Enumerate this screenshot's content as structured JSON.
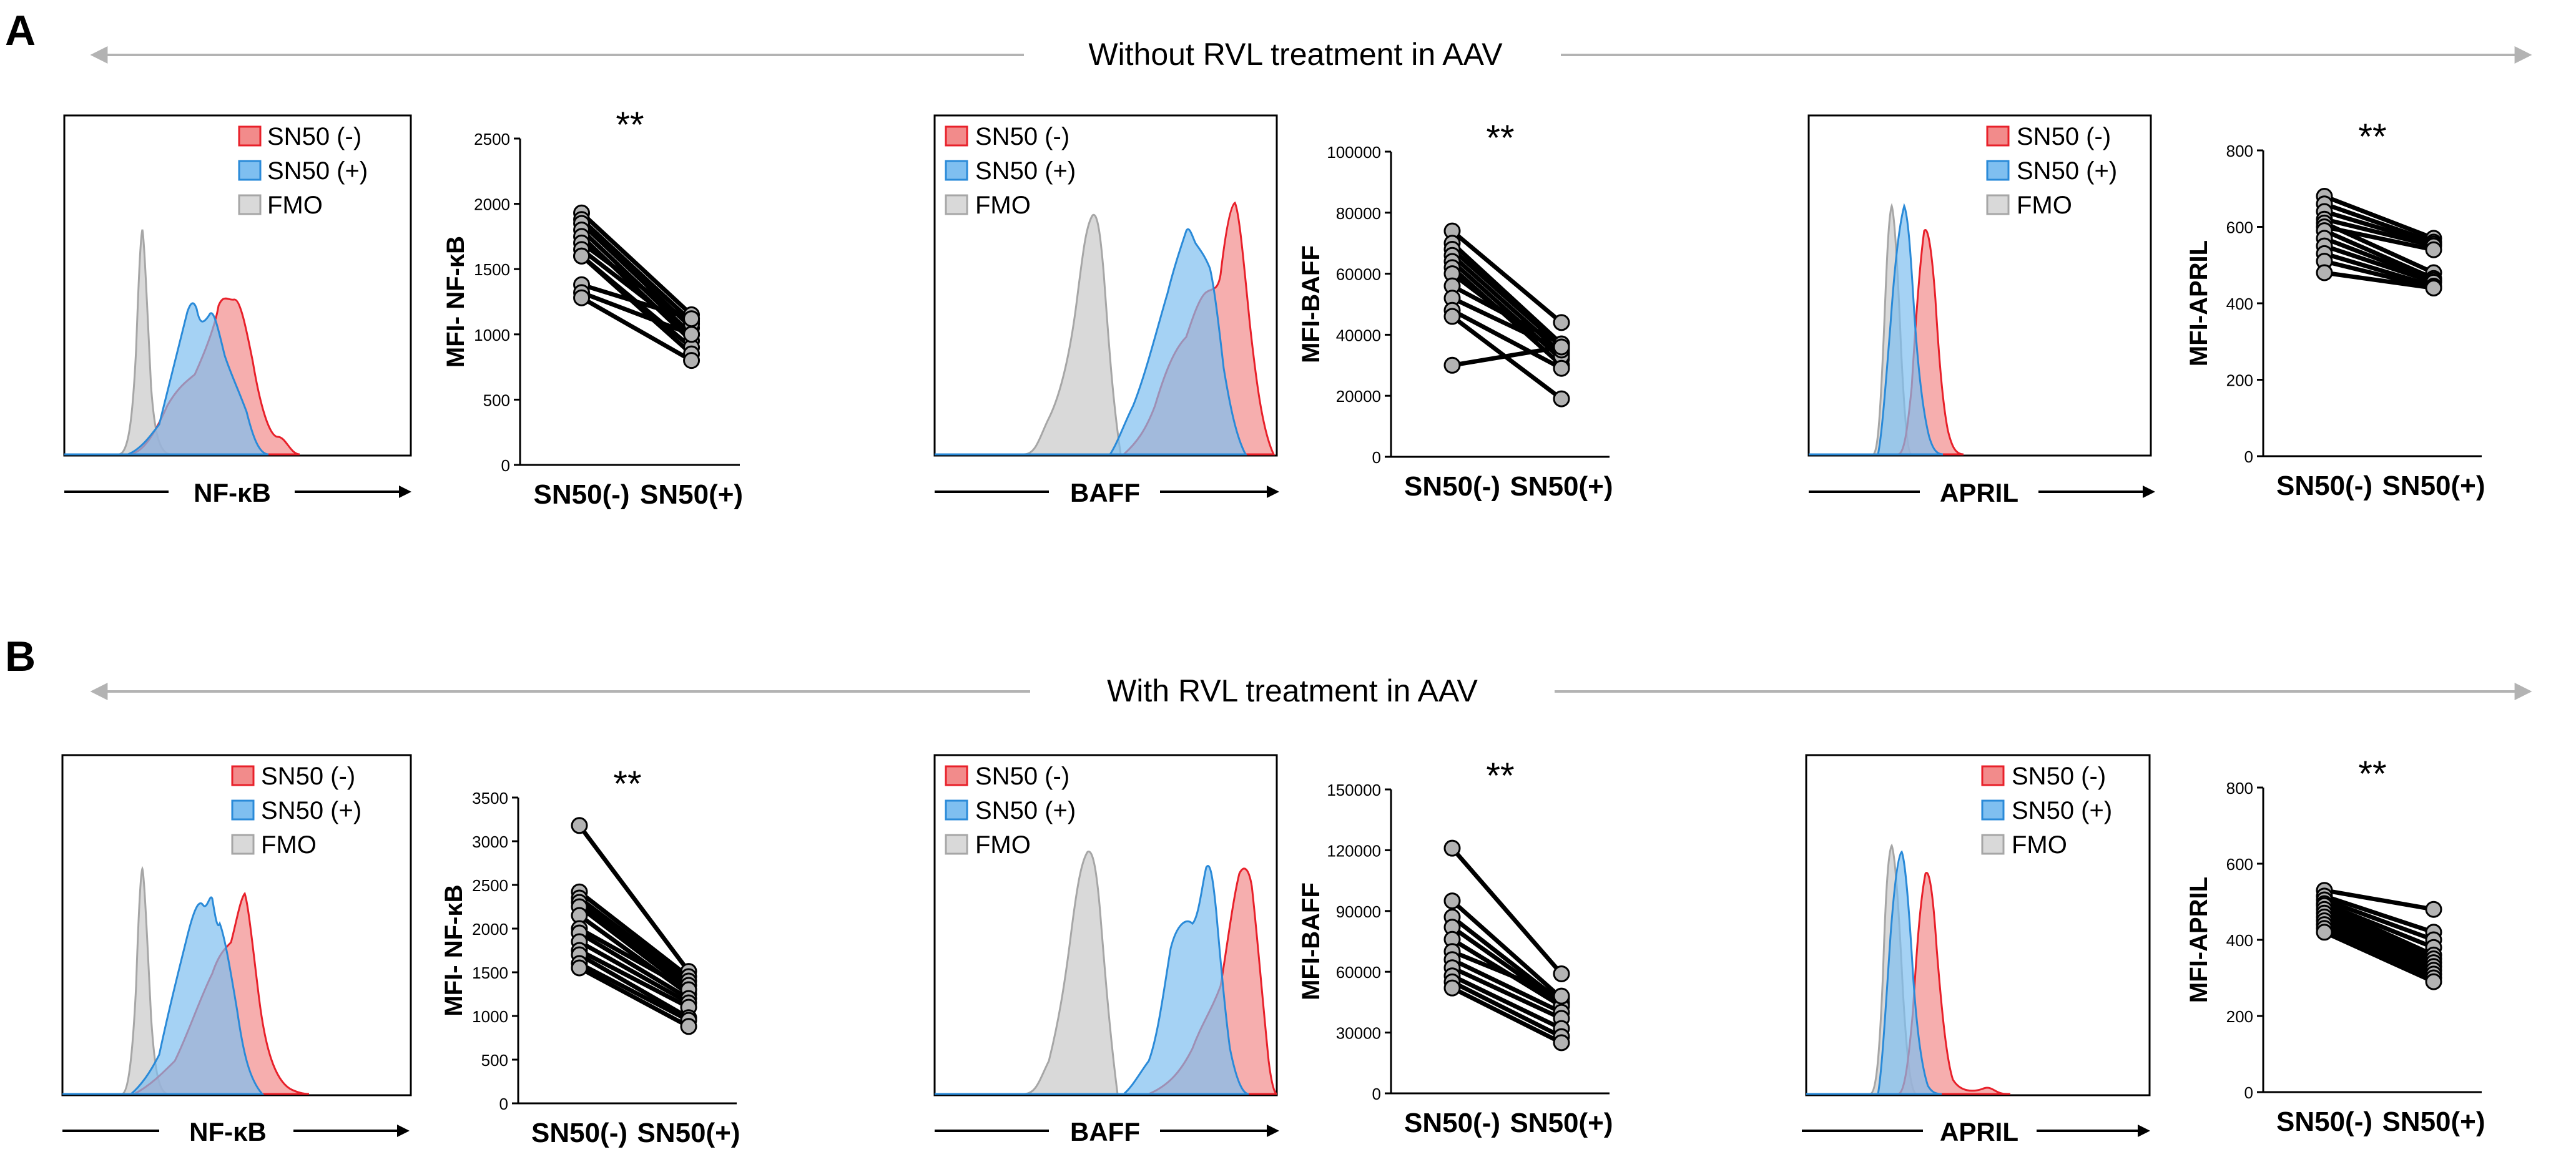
{
  "figure": {
    "panels": [
      {
        "id": "A",
        "label": "A",
        "condition": "Without RVL treatment in AAV",
        "histograms": [
          {
            "marker": "NF-κB",
            "legend": [
              "SN50 (-)",
              "SN50 (+)",
              "FMO"
            ]
          },
          {
            "marker": "BAFF",
            "legend": [
              "SN50 (-)",
              "SN50 (+)",
              "FMO"
            ]
          },
          {
            "marker": "APRIL",
            "legend": [
              "SN50 (-)",
              "SN50 (+)",
              "FMO"
            ]
          }
        ]
      },
      {
        "id": "B",
        "label": "B",
        "condition": "With RVL treatment in AAV",
        "histograms": [
          {
            "marker": "NF-κB",
            "legend": [
              "SN50 (-)",
              "SN50 (+)",
              "FMO"
            ]
          },
          {
            "marker": "BAFF",
            "legend": [
              "SN50 (-)",
              "SN50 (+)",
              "FMO"
            ]
          },
          {
            "marker": "APRIL",
            "legend": [
              "SN50 (-)",
              "SN50 (+)",
              "FMO"
            ]
          }
        ]
      }
    ],
    "colors": {
      "sn50_neg_fill": "#f28b8b",
      "sn50_neg_line": "#e8202a",
      "sn50_pos_fill": "#7fbff0",
      "sn50_pos_line": "#2a8ad8",
      "fmo_fill": "#d9d9d9",
      "fmo_line": "#a6a6a6",
      "point_fill": "#b3b3b3",
      "arrow_gray": "#b3b3b3"
    }
  },
  "chart_data": [
    {
      "type": "line",
      "panel": "A",
      "title": "**",
      "xlabel": "",
      "ylabel": "MFI- NF-κB",
      "categories": [
        "SN50(-)",
        "SN50(+)"
      ],
      "ylim": [
        0,
        2500
      ],
      "yticks": [
        0,
        500,
        1000,
        1500,
        2000,
        2500
      ],
      "series": [
        [
          1930,
          1150
        ],
        [
          1880,
          1100
        ],
        [
          1850,
          1050
        ],
        [
          1800,
          1000
        ],
        [
          1750,
          950
        ],
        [
          1700,
          1080
        ],
        [
          1650,
          1000
        ],
        [
          1600,
          900
        ],
        [
          1600,
          850
        ],
        [
          1380,
          1120
        ],
        [
          1320,
          1000
        ],
        [
          1280,
          800
        ]
      ]
    },
    {
      "type": "line",
      "panel": "A",
      "title": "**",
      "xlabel": "",
      "ylabel": "MFI-BAFF",
      "categories": [
        "SN50(-)",
        "SN50(+)"
      ],
      "ylim": [
        0,
        100000
      ],
      "yticks": [
        0,
        20000,
        40000,
        60000,
        80000,
        100000
      ],
      "series": [
        [
          74000,
          44000
        ],
        [
          70000,
          37000
        ],
        [
          68000,
          36000
        ],
        [
          66000,
          34000
        ],
        [
          64000,
          32000
        ],
        [
          62000,
          30000
        ],
        [
          60000,
          33000
        ],
        [
          56000,
          37000
        ],
        [
          52000,
          35000
        ],
        [
          48000,
          29000
        ],
        [
          46000,
          19000
        ],
        [
          30000,
          36000
        ]
      ]
    },
    {
      "type": "line",
      "panel": "A",
      "title": "**",
      "xlabel": "",
      "ylabel": "MFI-APRIL",
      "categories": [
        "SN50(-)",
        "SN50(+)"
      ],
      "ylim": [
        0,
        800
      ],
      "yticks": [
        0,
        200,
        400,
        600,
        800
      ],
      "series": [
        [
          680,
          570
        ],
        [
          660,
          560
        ],
        [
          640,
          555
        ],
        [
          620,
          550
        ],
        [
          610,
          480
        ],
        [
          600,
          540
        ],
        [
          590,
          465
        ],
        [
          570,
          460
        ],
        [
          550,
          455
        ],
        [
          530,
          445
        ],
        [
          510,
          440
        ],
        [
          480,
          440
        ]
      ]
    },
    {
      "type": "line",
      "panel": "B",
      "title": "**",
      "xlabel": "",
      "ylabel": "MFI- NF-κB",
      "categories": [
        "SN50(-)",
        "SN50(+)"
      ],
      "ylim": [
        0,
        3500
      ],
      "yticks": [
        0,
        500,
        1000,
        1500,
        2000,
        2500,
        3000,
        3500
      ],
      "series": [
        [
          3180,
          1510
        ],
        [
          2420,
          1450
        ],
        [
          2350,
          1400
        ],
        [
          2300,
          1350
        ],
        [
          2250,
          1300
        ],
        [
          2150,
          1250
        ],
        [
          2000,
          1300
        ],
        [
          1950,
          1200
        ],
        [
          1850,
          1150
        ],
        [
          1750,
          1100
        ],
        [
          1700,
          980
        ],
        [
          1600,
          950
        ],
        [
          1550,
          880
        ]
      ]
    },
    {
      "type": "line",
      "panel": "B",
      "title": "**",
      "xlabel": "",
      "ylabel": "MFI-BAFF",
      "categories": [
        "SN50(-)",
        "SN50(+)"
      ],
      "ylim": [
        0,
        150000
      ],
      "yticks": [
        0,
        30000,
        60000,
        90000,
        120000,
        150000
      ],
      "series": [
        [
          121000,
          59000
        ],
        [
          95000,
          47000
        ],
        [
          87000,
          45000
        ],
        [
          82000,
          44000
        ],
        [
          76000,
          43000
        ],
        [
          70000,
          48000
        ],
        [
          66000,
          40000
        ],
        [
          62000,
          37000
        ],
        [
          58000,
          32000
        ],
        [
          55000,
          28000
        ],
        [
          52000,
          25000
        ]
      ]
    },
    {
      "type": "line",
      "panel": "B",
      "title": "**",
      "xlabel": "",
      "ylabel": "MFI-APRIL",
      "categories": [
        "SN50(-)",
        "SN50(+)"
      ],
      "ylim": [
        0,
        800
      ],
      "yticks": [
        0,
        200,
        400,
        600,
        800
      ],
      "series": [
        [
          530,
          480
        ],
        [
          515,
          420
        ],
        [
          505,
          400
        ],
        [
          495,
          380
        ],
        [
          490,
          360
        ],
        [
          480,
          350
        ],
        [
          470,
          340
        ],
        [
          460,
          330
        ],
        [
          450,
          320
        ],
        [
          440,
          310
        ],
        [
          430,
          300
        ],
        [
          420,
          290
        ]
      ]
    }
  ]
}
